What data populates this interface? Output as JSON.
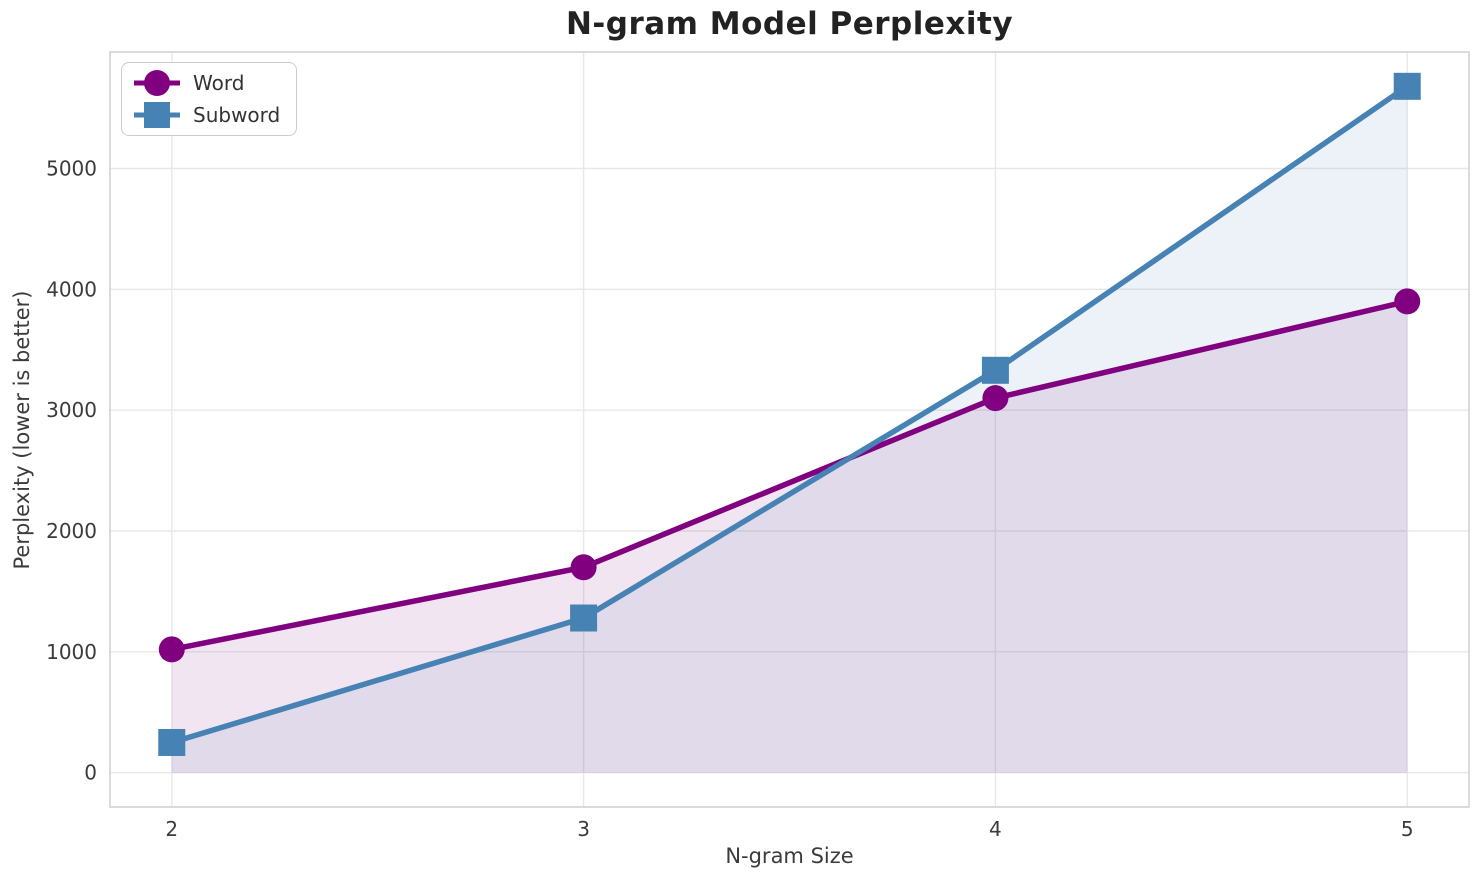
{
  "chart_data": {
    "type": "line",
    "title": "N-gram Model Perplexity",
    "xlabel": "N-gram Size",
    "ylabel": "Perplexity (lower is better)",
    "x": [
      2,
      3,
      4,
      5
    ],
    "series": [
      {
        "name": "Word",
        "marker": "circle",
        "color": "#800080",
        "fill_alpha": 0.1,
        "values": [
          1020,
          1700,
          3100,
          3900
        ]
      },
      {
        "name": "Subword",
        "marker": "square",
        "color": "#4682B4",
        "fill_alpha": 0.1,
        "values": [
          250,
          1280,
          3330,
          5680
        ]
      }
    ],
    "area_baseline": 0,
    "xticks": [
      2,
      3,
      4,
      5
    ],
    "yticks": [
      0,
      1000,
      2000,
      3000,
      4000,
      5000
    ],
    "xlim": [
      1.85,
      5.15
    ],
    "ylim": [
      -284,
      5964
    ],
    "grid": true,
    "legend_position": "upper left"
  },
  "style": {
    "background": "#ffffff",
    "grid_color": "#e8e8e8",
    "frame_color": "#d2d2d2",
    "tick_color": "#3b3b3b",
    "label_color": "#3b3b3b",
    "title_color": "#222222",
    "legend_border": "#cccccc",
    "legend_text": "#333333"
  }
}
